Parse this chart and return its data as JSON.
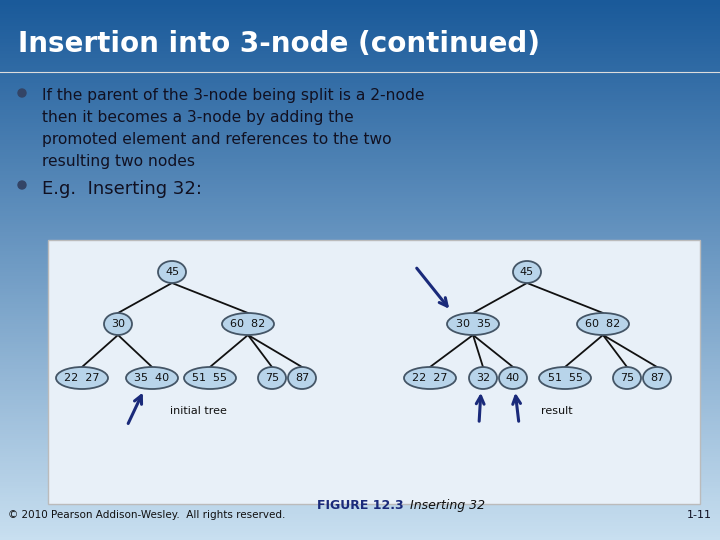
{
  "title": "Insertion into 3-node (continued)",
  "title_color": "#FFFFFF",
  "bg_top": "#1a5a9a",
  "bg_bottom": "#c8dff0",
  "bullet1_lines": [
    "If the parent of the 3-node being split is a 2-node",
    "then it becomes a 3-node by adding the",
    "promoted element and references to the two",
    "resulting two nodes"
  ],
  "bullet2": "E.g.  Inserting 32:",
  "node_fill": "#b8d4ea",
  "node_edge": "#445566",
  "line_color": "#111111",
  "arrow_color": "#1a2a7a",
  "figure_label": "FIGURE 12.3",
  "figure_caption": "  Inserting 32",
  "copyright": "© 2010 Pearson Addison-Wesley.  All rights reserved.",
  "page_num": "1-11",
  "initial_label": "initial tree",
  "result_label": "result",
  "diag_bg": "#e8f0f8",
  "diag_edge": "#bbbbbb"
}
